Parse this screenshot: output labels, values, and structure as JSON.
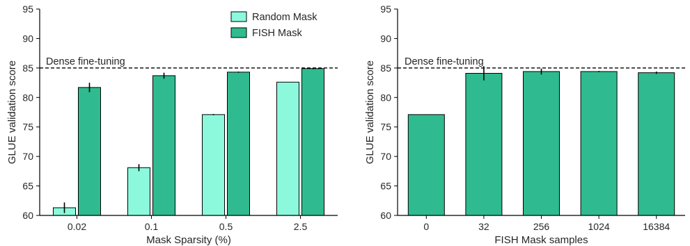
{
  "colors": {
    "random": "#8cf9dc",
    "fish": "#2fbb8f",
    "edge": "#000000",
    "error": "#000000"
  },
  "chart_data": [
    {
      "type": "bar",
      "categories": [
        "0.02",
        "0.1",
        "0.5",
        "2.5"
      ],
      "series": [
        {
          "name": "Random Mask",
          "values": [
            61.3,
            68.1,
            77.1,
            82.6
          ],
          "errors": [
            0.9,
            0.6,
            0.1,
            0.0
          ]
        },
        {
          "name": "FISH Mask",
          "values": [
            81.7,
            83.7,
            84.3,
            84.9
          ],
          "errors": [
            0.8,
            0.5,
            0.1,
            0.1
          ]
        }
      ],
      "xlabel": "Mask Sparsity (%)",
      "ylabel": "GLUE validation score",
      "ylim": [
        60,
        95
      ],
      "yticks": [
        "60",
        "65",
        "70",
        "75",
        "80",
        "85",
        "90",
        "95"
      ],
      "reference": {
        "label": "Dense fine-tuning",
        "value": 85
      },
      "legend": "top-right",
      "grid": false
    },
    {
      "type": "bar",
      "categories": [
        "0",
        "32",
        "256",
        "1024",
        "16384"
      ],
      "series": [
        {
          "values": [
            77.1,
            84.1,
            84.4,
            84.4,
            84.2
          ],
          "errors": [
            0.05,
            1.2,
            0.5,
            0.1,
            0.2
          ]
        }
      ],
      "xlabel": "FISH Mask samples",
      "ylabel": "GLUE validation score",
      "ylim": [
        60,
        95
      ],
      "yticks": [
        "60",
        "65",
        "70",
        "75",
        "80",
        "85",
        "90",
        "95"
      ],
      "reference": {
        "label": "Dense fine-tuning",
        "value": 85
      },
      "grid": false
    }
  ]
}
